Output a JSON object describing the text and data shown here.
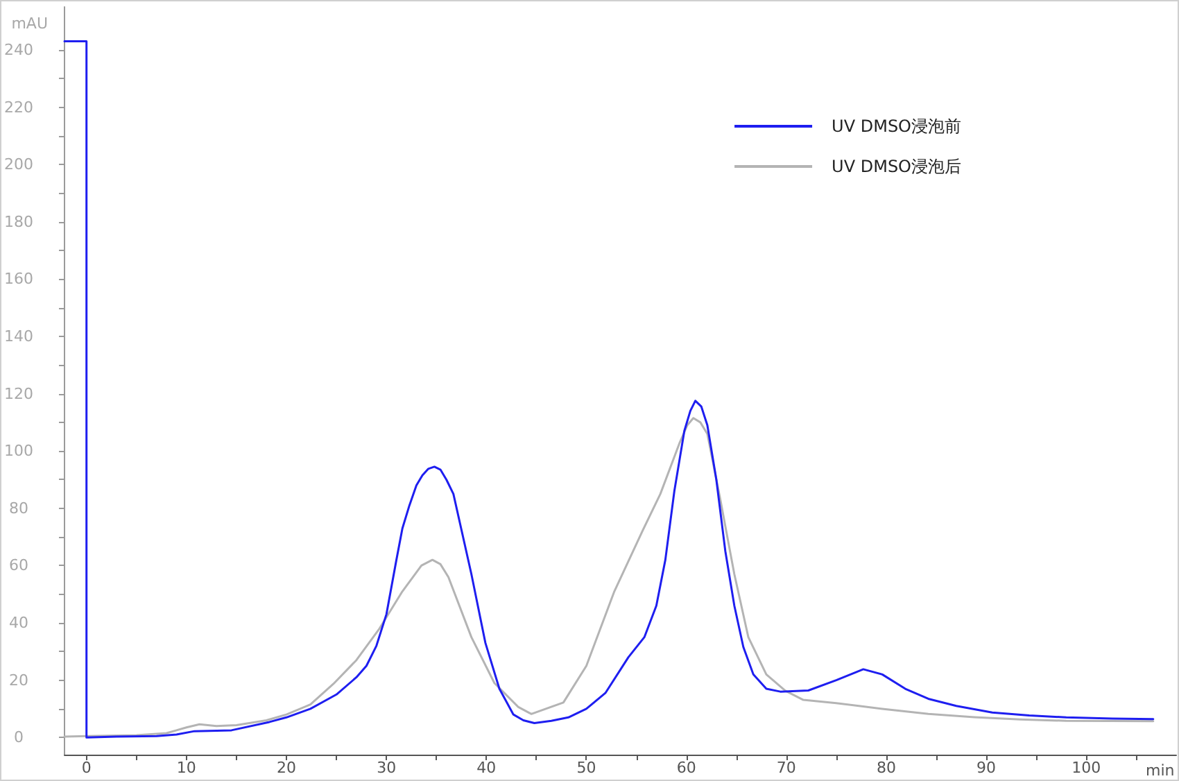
{
  "chart_data": {
    "type": "line",
    "xlabel": "min",
    "ylabel": "mAU",
    "xlim": [
      -2.2,
      109
    ],
    "ylim": [
      -6,
      255
    ],
    "xticks": [
      0,
      {
        "value": 5,
        "label": null
      },
      10,
      {
        "value": 15,
        "label": null
      },
      20,
      {
        "value": 25,
        "label": null
      },
      30,
      {
        "value": 35,
        "label": null
      },
      40,
      {
        "value": 45,
        "label": null
      },
      50,
      {
        "value": 55,
        "label": null
      },
      60,
      {
        "value": 65,
        "label": null
      },
      70,
      {
        "value": 75,
        "label": null
      },
      80,
      {
        "value": 85,
        "label": null
      },
      90,
      {
        "value": 95,
        "label": null
      },
      100,
      {
        "value": 105,
        "label": null
      }
    ],
    "yticks": [
      0,
      {
        "value": 10,
        "label": null
      },
      20,
      {
        "value": 30,
        "label": null
      },
      40,
      {
        "value": 50,
        "label": null
      },
      60,
      {
        "value": 70,
        "label": null
      },
      80,
      {
        "value": 90,
        "label": null
      },
      100,
      {
        "value": 110,
        "label": null
      },
      120,
      {
        "value": 130,
        "label": null
      },
      140,
      {
        "value": 150,
        "label": null
      },
      160,
      {
        "value": 170,
        "label": null
      },
      180,
      {
        "value": 190,
        "label": null
      },
      200,
      {
        "value": 210,
        "label": null
      },
      220,
      {
        "value": 230,
        "label": null
      },
      240
    ],
    "legend": "top right",
    "series": [
      {
        "name": "UV DMSO浸泡前",
        "color": "#1e1ef0",
        "x": [
          -2.2,
          0,
          0,
          3,
          7,
          9,
          10.8,
          14.5,
          18.3,
          20,
          22.4,
          25,
          27,
          28,
          29,
          30,
          31,
          31.6,
          32.3,
          33,
          33.6,
          34.2,
          34.8,
          35.4,
          36,
          36.7,
          38.5,
          39.9,
          41.3,
          42.7,
          43.7,
          44.8,
          46.5,
          48.2,
          50,
          51.9,
          54.2,
          55.8,
          57,
          57.9,
          58.8,
          59.8,
          60.4,
          60.9,
          61.5,
          62.1,
          63,
          63.9,
          64.8,
          65.7,
          66.7,
          68,
          69.4,
          72.2,
          75,
          77.7,
          79.6,
          81.9,
          84.2,
          87,
          90.6,
          94.3,
          98,
          102.6,
          106.7
        ],
        "values": [
          243,
          243,
          0,
          0.3,
          0.5,
          1,
          2.2,
          2.5,
          5.4,
          7,
          10,
          15,
          21,
          25,
          32,
          43,
          62,
          73,
          81,
          88,
          91.5,
          93.8,
          94.5,
          93.5,
          90,
          85,
          57,
          33,
          17,
          8,
          6,
          5,
          5.8,
          7,
          10,
          15.5,
          28,
          35,
          46,
          62,
          86,
          107,
          114,
          117.5,
          115.5,
          109,
          90,
          65,
          46,
          31.6,
          22,
          17,
          16,
          16.4,
          20,
          23.8,
          22,
          17,
          13.5,
          11,
          8.7,
          7.7,
          7,
          6.6,
          6.4
        ]
      },
      {
        "name": "UV DMSO浸泡后",
        "color": "#b4b4b4",
        "x": [
          -2.2,
          0,
          5,
          8,
          10,
          11.3,
          13,
          15,
          18,
          20,
          22.4,
          24.7,
          27,
          29.3,
          31.6,
          33.5,
          34.6,
          35.4,
          36.2,
          38.5,
          40.8,
          43.2,
          44.5,
          47.7,
          50,
          52.8,
          55.6,
          57.4,
          59.3,
          60.1,
          60.7,
          61.4,
          62.1,
          63.4,
          64.8,
          66.2,
          68,
          69.9,
          71.7,
          75,
          79.6,
          84.2,
          88.8,
          93.4,
          98,
          106.7
        ],
        "values": [
          0.3,
          0.5,
          0.8,
          1.5,
          3.5,
          4.6,
          4,
          4.3,
          6,
          8,
          11.5,
          18.7,
          27,
          38,
          51,
          60,
          62,
          60.5,
          56,
          35,
          19,
          10.6,
          8.2,
          12.2,
          25,
          51,
          72,
          85,
          102.6,
          109,
          111.5,
          110,
          106,
          83,
          57,
          35,
          22,
          16.3,
          13.1,
          12,
          10,
          8.2,
          7.1,
          6.3,
          5.8,
          5.7
        ]
      }
    ]
  }
}
